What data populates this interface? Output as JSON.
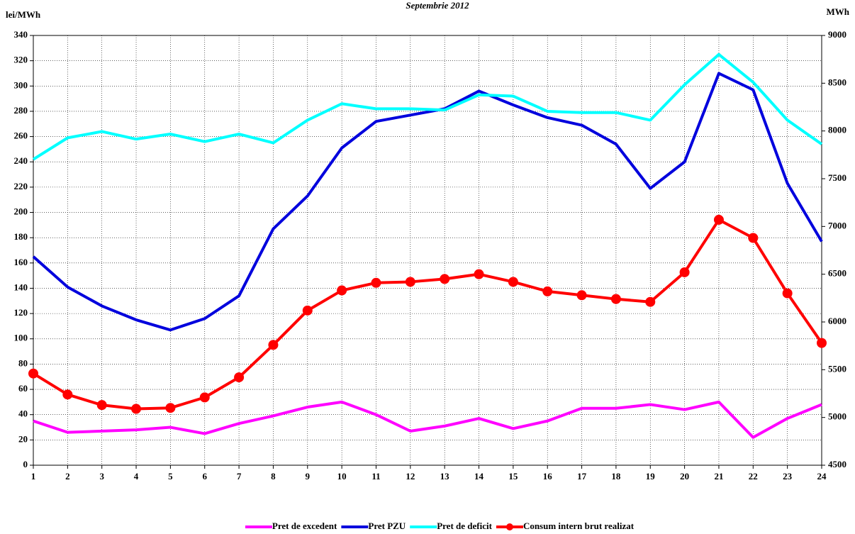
{
  "chart_data": {
    "type": "line",
    "title": "Septembrie 2012",
    "y_label": "lei/MWh",
    "y2_label": "MWh",
    "categories": [
      "1",
      "2",
      "3",
      "4",
      "5",
      "6",
      "7",
      "8",
      "9",
      "10",
      "11",
      "12",
      "13",
      "14",
      "15",
      "16",
      "17",
      "18",
      "19",
      "20",
      "21",
      "22",
      "23",
      "24"
    ],
    "series": [
      {
        "name": "Pret de excedent",
        "color": "#ff00ff",
        "values": [
          35,
          26,
          27,
          28,
          30,
          25,
          33,
          39,
          46,
          50,
          40,
          27,
          31,
          37,
          29,
          35,
          45,
          45,
          48,
          44,
          50,
          22,
          37,
          48
        ]
      },
      {
        "name": "Pret PZU",
        "color": "#0000dd",
        "values": [
          165,
          141,
          126,
          115,
          107,
          116,
          134,
          187,
          213,
          251,
          272,
          277,
          282,
          296,
          285,
          275,
          269,
          254,
          219,
          240,
          310,
          297,
          223,
          177
        ]
      },
      {
        "name": "Pret de deficit",
        "color": "#00ffff",
        "values": [
          242,
          259,
          264,
          258,
          262,
          256,
          262,
          255,
          273,
          286,
          282,
          282,
          281,
          293,
          292,
          280,
          279,
          279,
          273,
          301,
          325,
          303,
          273,
          254
        ]
      },
      {
        "name": "Consum intern brut realizat",
        "color": "#ff0000",
        "axis": "y2",
        "marker": "circle",
        "values": [
          5460,
          5240,
          5130,
          5090,
          5100,
          5210,
          5420,
          5760,
          6120,
          6330,
          6410,
          6420,
          6450,
          6500,
          6420,
          6320,
          6280,
          6240,
          6210,
          6520,
          7070,
          6880,
          6300,
          5780
        ]
      }
    ],
    "ylim": [
      0,
      340
    ],
    "yticks": [
      0,
      20,
      40,
      60,
      80,
      100,
      120,
      140,
      160,
      180,
      200,
      220,
      240,
      260,
      280,
      300,
      320,
      340
    ],
    "y2lim": [
      4500,
      9000
    ],
    "y2ticks": [
      4500,
      5000,
      5500,
      6000,
      6500,
      7000,
      7500,
      8000,
      8500,
      9000
    ],
    "grid": true,
    "legend": "bottom"
  }
}
